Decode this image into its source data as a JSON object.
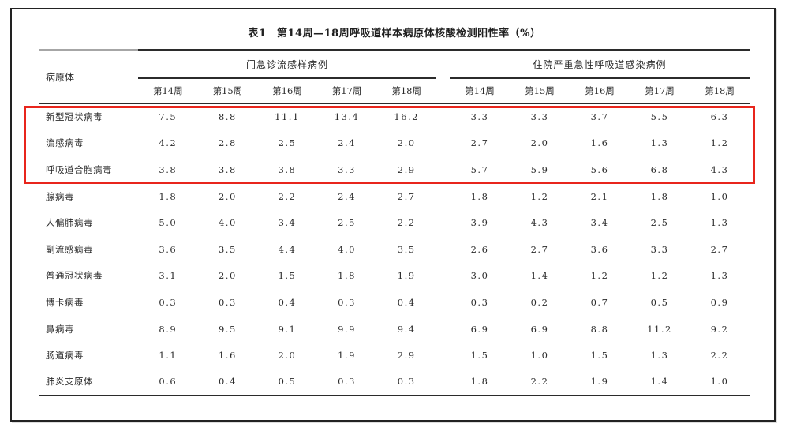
{
  "doc": {
    "title": "表1　第14周—18周呼吸道样本病原体核酸检测阳性率（%）"
  },
  "table": {
    "pathogen_column_header": "病原体",
    "groups": [
      {
        "label": "门急诊流感样病例",
        "weeks": [
          "第14周",
          "第15周",
          "第16周",
          "第17周",
          "第18周"
        ]
      },
      {
        "label": "住院严重急性呼吸道感染病例",
        "weeks": [
          "第14周",
          "第15周",
          "第16周",
          "第17周",
          "第18周"
        ]
      }
    ],
    "rows": [
      {
        "pathogen": "新型冠状病毒",
        "outpatient_ili": [
          "7.5",
          "8.8",
          "11.1",
          "13.4",
          "16.2"
        ],
        "inpatient_sari": [
          "3.3",
          "3.3",
          "3.7",
          "5.5",
          "6.3"
        ],
        "highlighted": true
      },
      {
        "pathogen": "流感病毒",
        "outpatient_ili": [
          "4.2",
          "2.8",
          "2.5",
          "2.4",
          "2.0"
        ],
        "inpatient_sari": [
          "2.7",
          "2.0",
          "1.6",
          "1.3",
          "1.2"
        ],
        "highlighted": true
      },
      {
        "pathogen": "呼吸道合胞病毒",
        "outpatient_ili": [
          "3.8",
          "3.8",
          "3.8",
          "3.3",
          "2.9"
        ],
        "inpatient_sari": [
          "5.7",
          "5.9",
          "5.6",
          "6.8",
          "4.3"
        ],
        "highlighted": true
      },
      {
        "pathogen": "腺病毒",
        "outpatient_ili": [
          "1.8",
          "2.0",
          "2.2",
          "2.4",
          "2.7"
        ],
        "inpatient_sari": [
          "1.8",
          "1.2",
          "2.1",
          "1.8",
          "1.0"
        ],
        "highlighted": false
      },
      {
        "pathogen": "人偏肺病毒",
        "outpatient_ili": [
          "5.0",
          "4.0",
          "3.4",
          "2.5",
          "2.2"
        ],
        "inpatient_sari": [
          "3.9",
          "4.3",
          "3.4",
          "2.5",
          "1.3"
        ],
        "highlighted": false
      },
      {
        "pathogen": "副流感病毒",
        "outpatient_ili": [
          "3.6",
          "3.5",
          "4.4",
          "4.0",
          "3.5"
        ],
        "inpatient_sari": [
          "2.6",
          "2.7",
          "3.6",
          "3.3",
          "2.7"
        ],
        "highlighted": false
      },
      {
        "pathogen": "普通冠状病毒",
        "outpatient_ili": [
          "3.1",
          "2.0",
          "1.5",
          "1.8",
          "1.9"
        ],
        "inpatient_sari": [
          "3.0",
          "1.4",
          "1.2",
          "1.2",
          "1.3"
        ],
        "highlighted": false
      },
      {
        "pathogen": "博卡病毒",
        "outpatient_ili": [
          "0.3",
          "0.3",
          "0.4",
          "0.3",
          "0.4"
        ],
        "inpatient_sari": [
          "0.3",
          "0.2",
          "0.7",
          "0.5",
          "0.9"
        ],
        "highlighted": false
      },
      {
        "pathogen": "鼻病毒",
        "outpatient_ili": [
          "8.9",
          "9.5",
          "9.1",
          "9.9",
          "9.4"
        ],
        "inpatient_sari": [
          "6.9",
          "6.9",
          "8.8",
          "11.2",
          "9.2"
        ],
        "highlighted": false
      },
      {
        "pathogen": "肠道病毒",
        "outpatient_ili": [
          "1.1",
          "1.6",
          "2.0",
          "1.9",
          "2.9"
        ],
        "inpatient_sari": [
          "1.5",
          "1.0",
          "1.5",
          "1.3",
          "2.2"
        ],
        "highlighted": false
      },
      {
        "pathogen": "肺炎支原体",
        "outpatient_ili": [
          "0.6",
          "0.4",
          "0.5",
          "0.3",
          "0.3"
        ],
        "inpatient_sari": [
          "1.8",
          "2.2",
          "1.9",
          "1.4",
          "1.0"
        ],
        "highlighted": false
      }
    ]
  },
  "annotation": {
    "highlight_box_color": "#e8251c",
    "highlighted_rows": [
      "新型冠状病毒",
      "流感病毒",
      "呼吸道合胞病毒"
    ]
  }
}
